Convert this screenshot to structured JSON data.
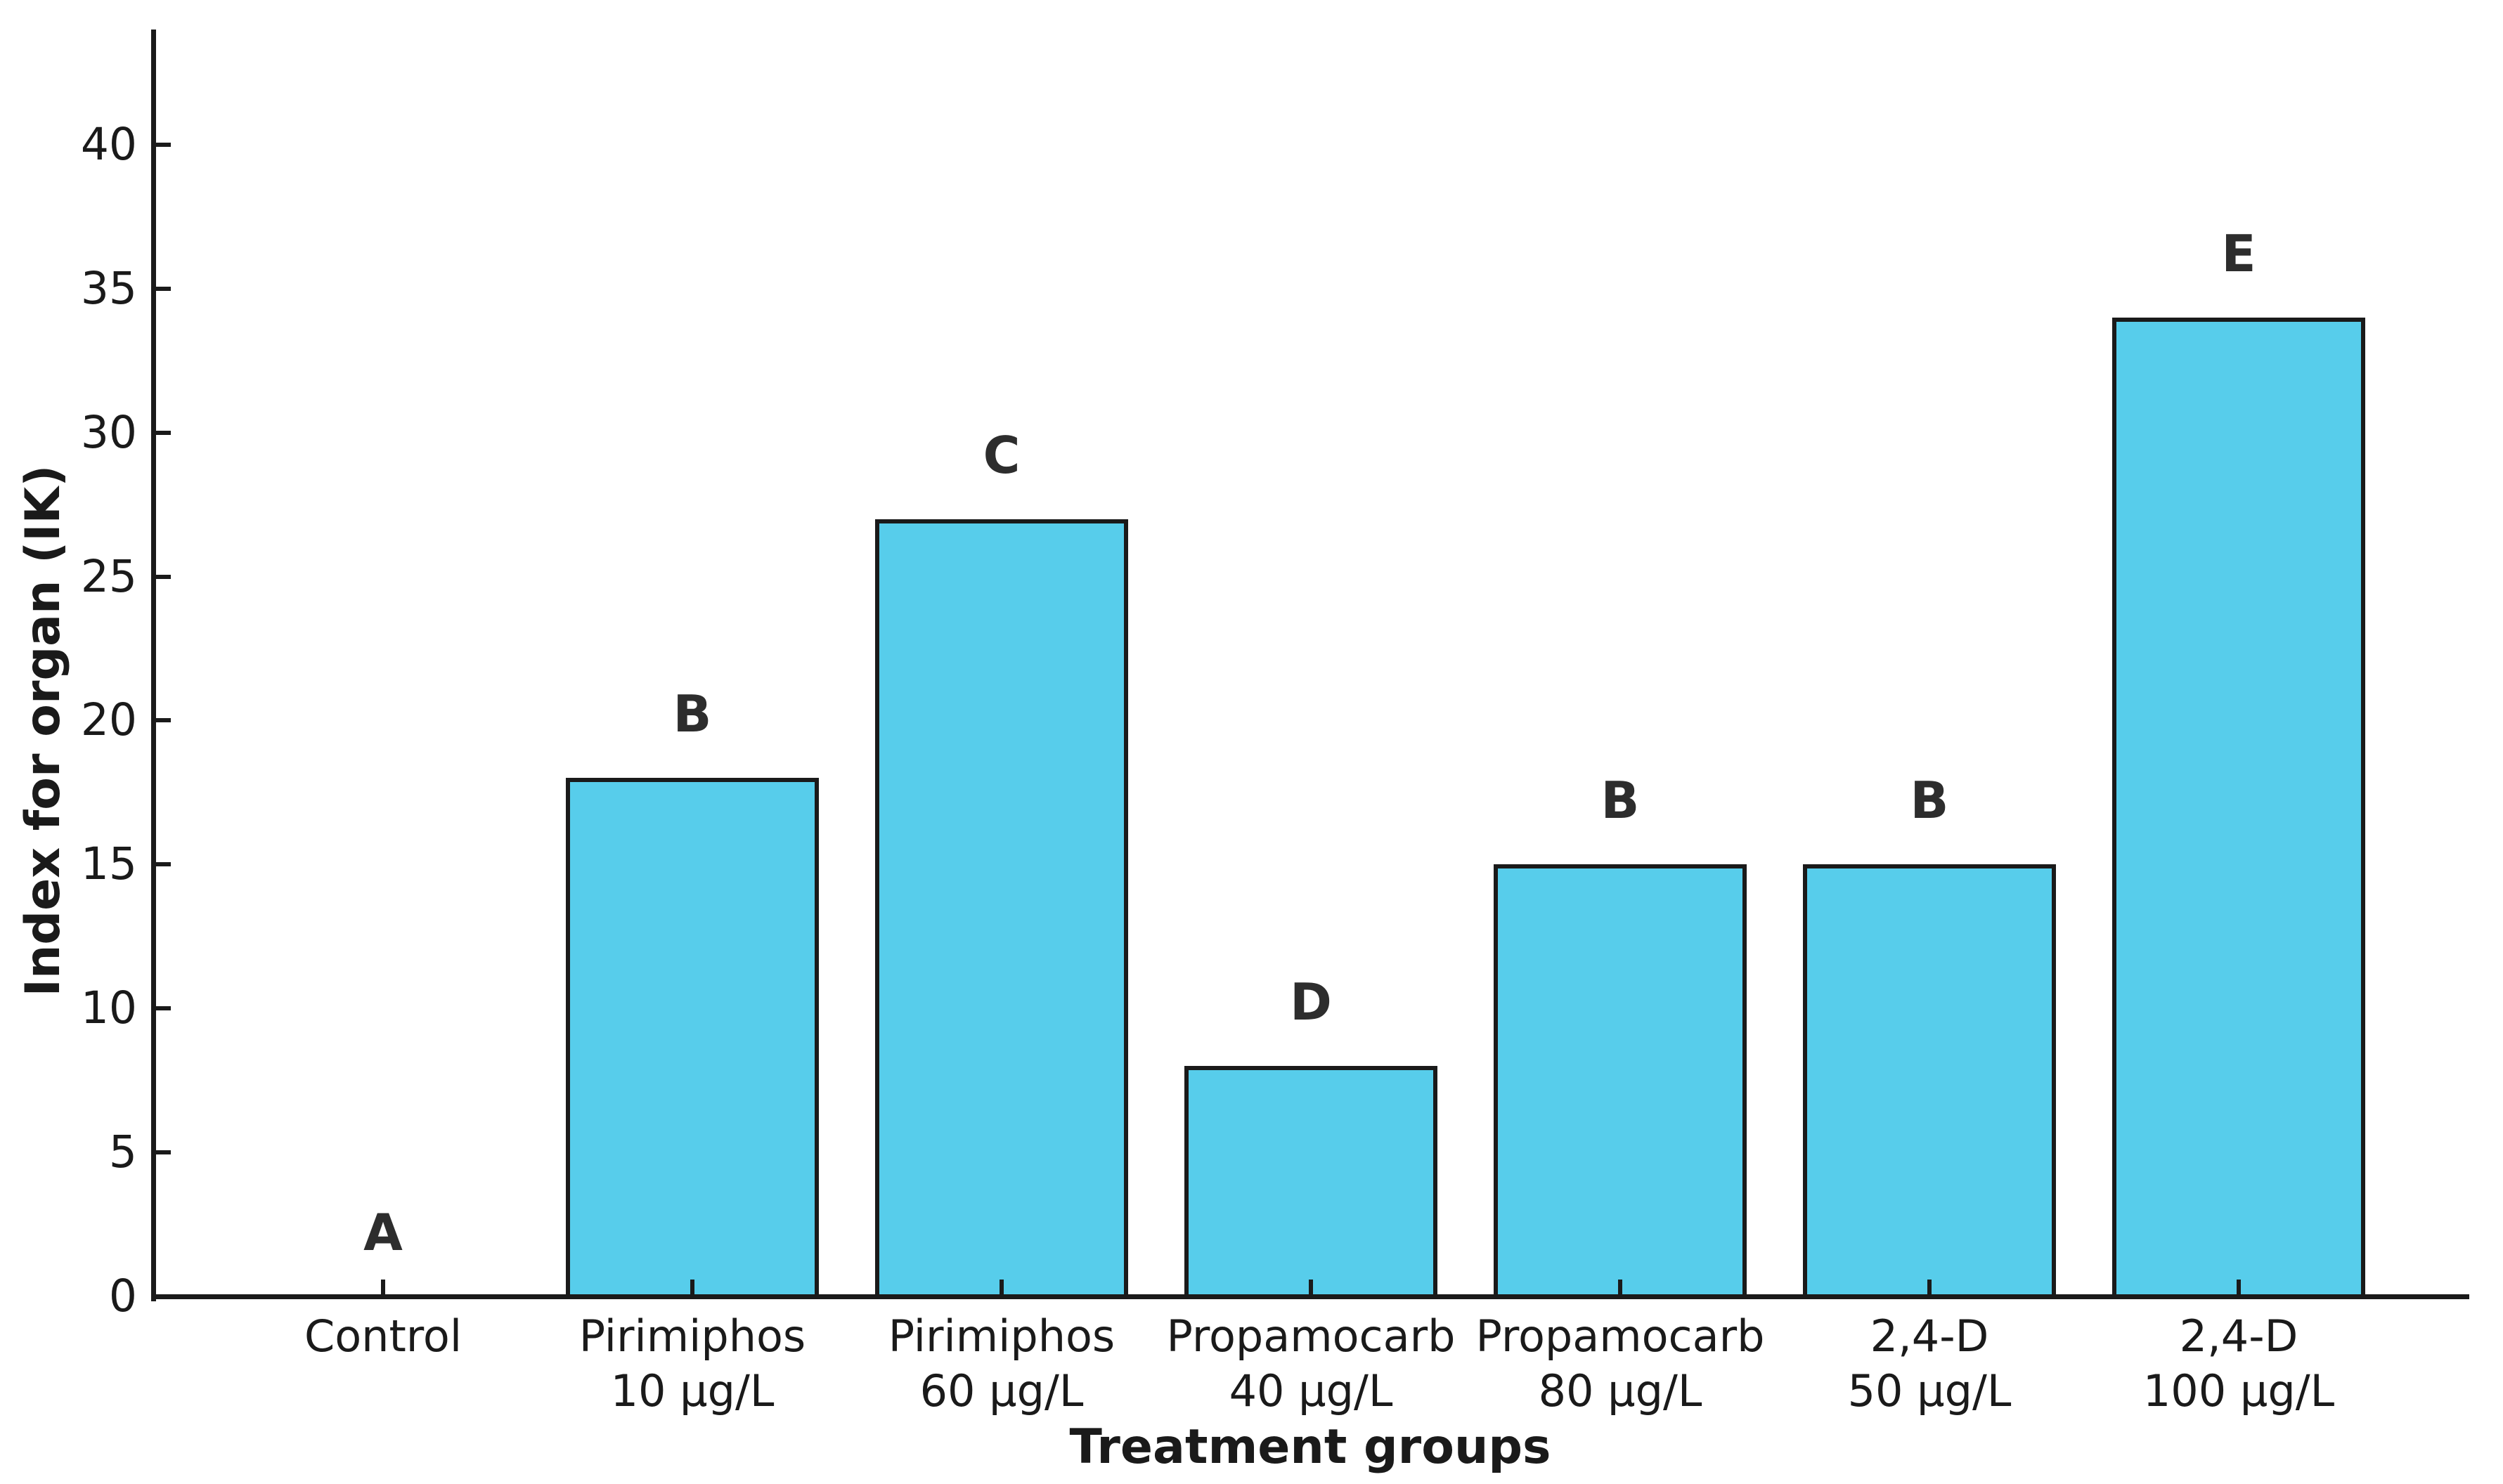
{
  "figure": {
    "background": "#ffffff"
  },
  "chart_data": {
    "type": "bar",
    "title": "",
    "xlabel": "Treatment groups",
    "ylabel": "Index for organ (IK)",
    "categories": [
      [
        "Control"
      ],
      [
        "Pirimiphos",
        "10 µg/L"
      ],
      [
        "Pirimiphos",
        "60 µg/L"
      ],
      [
        "Propamocarb",
        "40 µg/L"
      ],
      [
        "Propamocarb",
        "80 µg/L"
      ],
      [
        "2,4-D",
        "50 µg/L"
      ],
      [
        "2,4-D",
        "100 µg/L"
      ]
    ],
    "values": [
      0,
      18,
      27,
      8,
      15,
      15,
      34
    ],
    "significance_letters": [
      "A",
      "B",
      "C",
      "D",
      "B",
      "B",
      "E"
    ],
    "yticks": [
      0,
      5,
      10,
      15,
      20,
      25,
      30,
      35,
      40
    ],
    "ylim": [
      0,
      44
    ],
    "grid": false,
    "legend": null,
    "colors": {
      "bar_fill": "#57CDEB",
      "bar_edge": "#1a1a1a",
      "axis": "#1a1a1a",
      "text": "#1a1a1a",
      "letter": "#2d2d2d"
    }
  }
}
